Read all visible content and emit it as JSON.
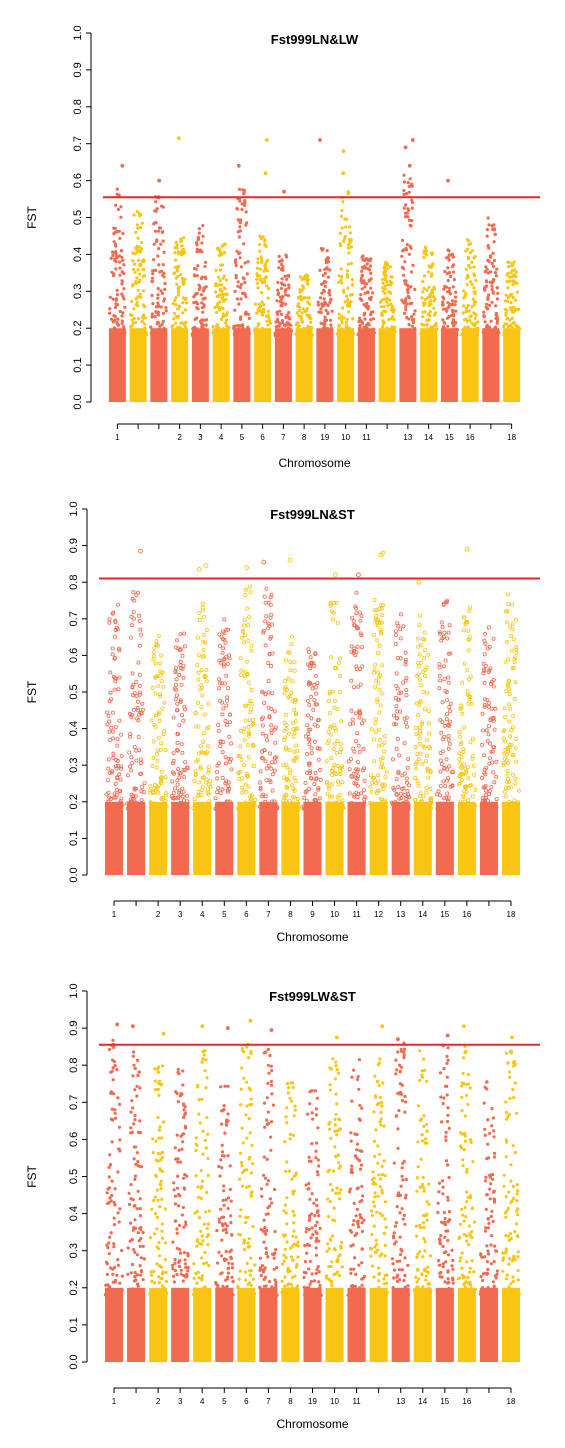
{
  "palette": {
    "red": "#f26a4f",
    "yellow": "#f9c512",
    "threshold": "#e8262a",
    "axis": "#000000"
  },
  "chart_data": [
    {
      "type": "scatter",
      "title": "Fst999LN&LW",
      "xlabel": "Chromosome",
      "ylabel": "FST",
      "ylim": [
        0,
        1
      ],
      "yticks": [
        0.0,
        0.1,
        0.2,
        0.3,
        0.4,
        0.5,
        0.6,
        0.7,
        0.8,
        0.9,
        1.0
      ],
      "threshold": 0.555,
      "marker": "filled",
      "x_tick_labels": [
        "1",
        "2",
        "3",
        "4",
        "5",
        "6",
        "7",
        "8",
        "19",
        "10",
        "11",
        "13",
        "14",
        "15",
        "16",
        "18"
      ],
      "chromosomes": [
        {
          "label": "1",
          "color": "red",
          "peak": 0.58
        },
        {
          "label": "",
          "color": "yellow",
          "peak": 0.52
        },
        {
          "label": "",
          "color": "red",
          "peak": 0.58
        },
        {
          "label": "2",
          "color": "yellow",
          "peak": 0.45
        },
        {
          "label": "3",
          "color": "red",
          "peak": 0.48
        },
        {
          "label": "4",
          "color": "yellow",
          "peak": 0.44
        },
        {
          "label": "5",
          "color": "red",
          "peak": 0.6
        },
        {
          "label": "6",
          "color": "yellow",
          "peak": 0.45
        },
        {
          "label": "7",
          "color": "red",
          "peak": 0.4
        },
        {
          "label": "8",
          "color": "yellow",
          "peak": 0.35
        },
        {
          "label": "19",
          "color": "red",
          "peak": 0.42
        },
        {
          "label": "10",
          "color": "yellow",
          "peak": 0.58
        },
        {
          "label": "11",
          "color": "red",
          "peak": 0.4
        },
        {
          "label": "",
          "color": "yellow",
          "peak": 0.38
        },
        {
          "label": "13",
          "color": "red",
          "peak": 0.62
        },
        {
          "label": "14",
          "color": "yellow",
          "peak": 0.42
        },
        {
          "label": "15",
          "color": "red",
          "peak": 0.42
        },
        {
          "label": "16",
          "color": "yellow",
          "peak": 0.45
        },
        {
          "label": "",
          "color": "red",
          "peak": 0.5
        },
        {
          "label": "18",
          "color": "yellow",
          "peak": 0.38
        }
      ],
      "outliers": [
        {
          "chr": 1,
          "fst": 0.64
        },
        {
          "chr": 3,
          "fst": 0.6
        },
        {
          "chr": 4,
          "fst": 0.715
        },
        {
          "chr": 7,
          "fst": 0.64
        },
        {
          "chr": 8,
          "fst": 0.71
        },
        {
          "chr": 8,
          "fst": 0.62
        },
        {
          "chr": 9,
          "fst": 0.57
        },
        {
          "chr": 11,
          "fst": 0.71
        },
        {
          "chr": 12,
          "fst": 0.68
        },
        {
          "chr": 12,
          "fst": 0.62
        },
        {
          "chr": 15,
          "fst": 0.71
        },
        {
          "chr": 15,
          "fst": 0.69
        },
        {
          "chr": 15,
          "fst": 0.64
        },
        {
          "chr": 17,
          "fst": 0.6
        }
      ]
    },
    {
      "type": "scatter",
      "title": "Fst999LN&ST",
      "xlabel": "Chromosome",
      "ylabel": "FST",
      "ylim": [
        0,
        1
      ],
      "yticks": [
        0.0,
        0.1,
        0.2,
        0.3,
        0.4,
        0.5,
        0.6,
        0.7,
        0.8,
        0.9,
        1.0
      ],
      "threshold": 0.81,
      "marker": "open",
      "x_tick_labels": [
        "1",
        "2",
        "3",
        "4",
        "5",
        "6",
        "7",
        "8",
        "9",
        "10",
        "11",
        "12",
        "13",
        "14",
        "15",
        "16",
        "18"
      ],
      "chromosomes": [
        {
          "label": "1",
          "color": "red",
          "peak": 0.76
        },
        {
          "label": "",
          "color": "red",
          "peak": 0.78
        },
        {
          "label": "2",
          "color": "yellow",
          "peak": 0.66
        },
        {
          "label": "3",
          "color": "red",
          "peak": 0.66
        },
        {
          "label": "4",
          "color": "yellow",
          "peak": 0.76
        },
        {
          "label": "5",
          "color": "red",
          "peak": 0.7
        },
        {
          "label": "6",
          "color": "yellow",
          "peak": 0.8
        },
        {
          "label": "7",
          "color": "red",
          "peak": 0.8
        },
        {
          "label": "8",
          "color": "yellow",
          "peak": 0.66
        },
        {
          "label": "9",
          "color": "red",
          "peak": 0.62
        },
        {
          "label": "10",
          "color": "yellow",
          "peak": 0.76
        },
        {
          "label": "11",
          "color": "red",
          "peak": 0.78
        },
        {
          "label": "12",
          "color": "yellow",
          "peak": 0.76
        },
        {
          "label": "13",
          "color": "red",
          "peak": 0.72
        },
        {
          "label": "14",
          "color": "yellow",
          "peak": 0.72
        },
        {
          "label": "15",
          "color": "red",
          "peak": 0.76
        },
        {
          "label": "16",
          "color": "yellow",
          "peak": 0.78
        },
        {
          "label": "",
          "color": "red",
          "peak": 0.68
        },
        {
          "label": "18",
          "color": "yellow",
          "peak": 0.78
        }
      ],
      "outliers": [
        {
          "chr": 2,
          "fst": 0.885
        },
        {
          "chr": 5,
          "fst": 0.845
        },
        {
          "chr": 5,
          "fst": 0.835
        },
        {
          "chr": 7,
          "fst": 0.84
        },
        {
          "chr": 8,
          "fst": 0.855
        },
        {
          "chr": 9,
          "fst": 0.86
        },
        {
          "chr": 11,
          "fst": 0.82
        },
        {
          "chr": 12,
          "fst": 0.82
        },
        {
          "chr": 13,
          "fst": 0.88
        },
        {
          "chr": 13,
          "fst": 0.875
        },
        {
          "chr": 15,
          "fst": 0.8
        },
        {
          "chr": 17,
          "fst": 0.89
        }
      ]
    },
    {
      "type": "scatter",
      "title": "Fst999LW&ST",
      "xlabel": "Chromosome",
      "ylabel": "FST",
      "ylim": [
        0,
        1
      ],
      "yticks": [
        0.0,
        0.1,
        0.2,
        0.3,
        0.4,
        0.5,
        0.6,
        0.7,
        0.8,
        0.9,
        1.0
      ],
      "threshold": 0.855,
      "marker": "filled",
      "x_tick_labels": [
        "1",
        "2",
        "3",
        "4",
        "5",
        "6",
        "7",
        "8",
        "19",
        "10",
        "11",
        "13",
        "14",
        "15",
        "16",
        "18"
      ],
      "chromosomes": [
        {
          "label": "1",
          "color": "red",
          "peak": 0.88
        },
        {
          "label": "",
          "color": "red",
          "peak": 0.86
        },
        {
          "label": "2",
          "color": "yellow",
          "peak": 0.8
        },
        {
          "label": "3",
          "color": "red",
          "peak": 0.8
        },
        {
          "label": "4",
          "color": "yellow",
          "peak": 0.84
        },
        {
          "label": "5",
          "color": "red",
          "peak": 0.76
        },
        {
          "label": "6",
          "color": "yellow",
          "peak": 0.86
        },
        {
          "label": "7",
          "color": "red",
          "peak": 0.86
        },
        {
          "label": "8",
          "color": "yellow",
          "peak": 0.76
        },
        {
          "label": "19",
          "color": "red",
          "peak": 0.76
        },
        {
          "label": "10",
          "color": "yellow",
          "peak": 0.82
        },
        {
          "label": "11",
          "color": "red",
          "peak": 0.82
        },
        {
          "label": "",
          "color": "yellow",
          "peak": 0.84
        },
        {
          "label": "13",
          "color": "red",
          "peak": 0.86
        },
        {
          "label": "14",
          "color": "yellow",
          "peak": 0.84
        },
        {
          "label": "15",
          "color": "red",
          "peak": 0.86
        },
        {
          "label": "16",
          "color": "yellow",
          "peak": 0.86
        },
        {
          "label": "",
          "color": "red",
          "peak": 0.78
        },
        {
          "label": "18",
          "color": "yellow",
          "peak": 0.84
        }
      ],
      "outliers": [
        {
          "chr": 1,
          "fst": 0.91
        },
        {
          "chr": 2,
          "fst": 0.905
        },
        {
          "chr": 3,
          "fst": 0.885
        },
        {
          "chr": 5,
          "fst": 0.905
        },
        {
          "chr": 6,
          "fst": 0.9
        },
        {
          "chr": 7,
          "fst": 0.92
        },
        {
          "chr": 8,
          "fst": 0.895
        },
        {
          "chr": 11,
          "fst": 0.875
        },
        {
          "chr": 13,
          "fst": 0.905
        },
        {
          "chr": 14,
          "fst": 0.87
        },
        {
          "chr": 16,
          "fst": 0.88
        },
        {
          "chr": 17,
          "fst": 0.905
        },
        {
          "chr": 19,
          "fst": 0.875
        }
      ]
    }
  ]
}
